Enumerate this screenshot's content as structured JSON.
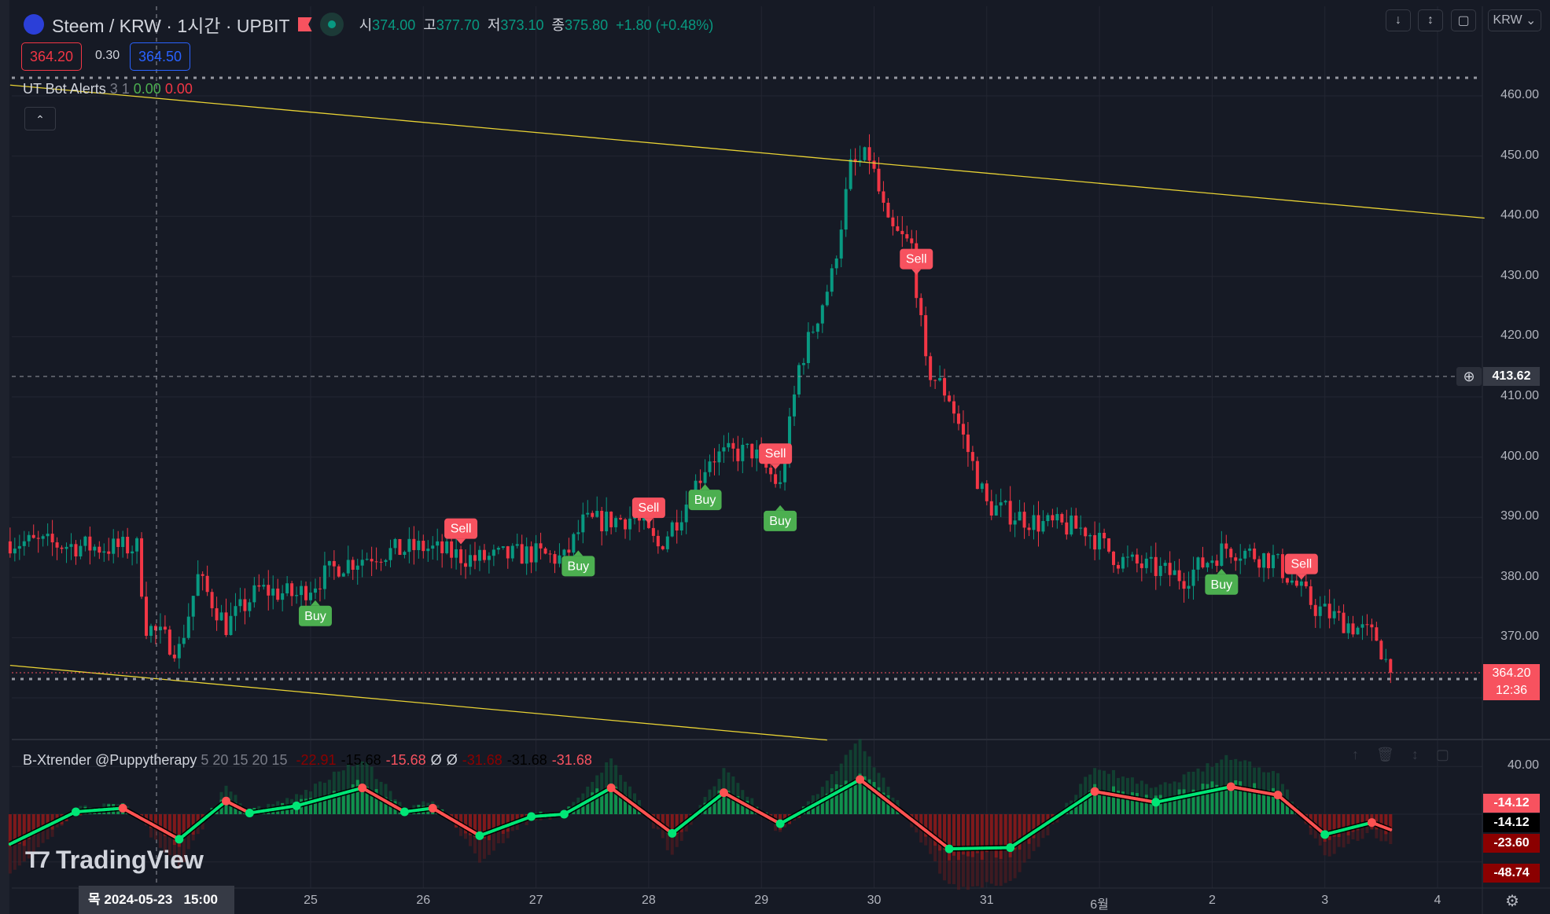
{
  "header": {
    "symbol": "Steem / KRW · 1시간 · UPBIT",
    "ohlc": [
      {
        "k": "시",
        "v": "374.00"
      },
      {
        "k": "고",
        "v": "377.70"
      },
      {
        "k": "저",
        "v": "373.10"
      },
      {
        "k": "종",
        "v": "375.80"
      }
    ],
    "change": "+1.80 (+0.48%)",
    "bid": "364.20",
    "spread": "0.30",
    "ask": "364.50",
    "currency": "KRW"
  },
  "indicators": {
    "ut": {
      "name": "UT Bot Alerts",
      "params": "3 1",
      "v1": "0.00",
      "v2": "0.00"
    },
    "bx": {
      "name": "B-Xtrender @Puppytherapy",
      "params": "5 20 15 20 15",
      "values": [
        {
          "t": "-22.91",
          "c": "#8b0000"
        },
        {
          "t": "-15.68",
          "c": "#000000"
        },
        {
          "t": "-15.68",
          "c": "#f7525f"
        },
        {
          "t": "Ø",
          "c": "#d1d4dc"
        },
        {
          "t": "Ø",
          "c": "#d1d4dc"
        },
        {
          "t": "-31.68",
          "c": "#8b0000"
        },
        {
          "t": "-31.68",
          "c": "#000000"
        },
        {
          "t": "-31.68",
          "c": "#f7525f"
        }
      ]
    }
  },
  "price_axis": [
    "460.00",
    "450.00",
    "440.00",
    "430.00",
    "420.00",
    "410.00",
    "400.00",
    "390.00",
    "380.00",
    "370.00"
  ],
  "crosshair": {
    "price": "413.62",
    "time_label": "목 2024-05-23",
    "time_hour": "15:00"
  },
  "last_price": {
    "price": "364.20",
    "countdown": "12:36"
  },
  "ind_axis": {
    "top": "40.00",
    "labels": [
      {
        "t": "-14.12",
        "bg": "#f7525f",
        "fg": "#ffffff"
      },
      {
        "t": "-14.12",
        "bg": "#000000",
        "fg": "#ffffff"
      },
      {
        "t": "-23.60",
        "bg": "#8b0000",
        "fg": "#ffffff"
      },
      {
        "t": "-48.74",
        "bg": "#8b0000",
        "fg": "#ffffff"
      }
    ]
  },
  "time_axis": [
    "25",
    "26",
    "27",
    "28",
    "29",
    "30",
    "31",
    "6월",
    "2",
    "3",
    "4"
  ],
  "watermark": "TradingView",
  "colors": {
    "up": "#089981",
    "down": "#f23645",
    "trend": "#e8d234",
    "buy": "#4caf50",
    "sell": "#f7525f",
    "line_up": "#00e676",
    "line_down": "#ff5252"
  },
  "chart_data": {
    "type": "candlestick",
    "price_path": [
      [
        "2024-05-22T08",
        386
      ],
      [
        "2024-05-23T03",
        385
      ],
      [
        "2024-05-23T11",
        385
      ],
      [
        "2024-05-23T13",
        372
      ],
      [
        "2024-05-23T20",
        368
      ],
      [
        "2024-05-24T00",
        380
      ],
      [
        "2024-05-24T06",
        372
      ],
      [
        "2024-05-24T13",
        378
      ],
      [
        "2024-05-24T21",
        377
      ],
      [
        "2024-05-25T06",
        382
      ],
      [
        "2024-05-25T14",
        384
      ],
      [
        "2024-05-26T00",
        385
      ],
      [
        "2024-05-26T11",
        383
      ],
      [
        "2024-05-26T23",
        384
      ],
      [
        "2024-05-27T06",
        383
      ],
      [
        "2024-05-27T10",
        389
      ],
      [
        "2024-05-27T21",
        390
      ],
      [
        "2024-05-28T02",
        385
      ],
      [
        "2024-05-28T07",
        391
      ],
      [
        "2024-05-28T13",
        400
      ],
      [
        "2024-05-28T22",
        401
      ],
      [
        "2024-05-29T04",
        395
      ],
      [
        "2024-05-29T08",
        415
      ],
      [
        "2024-05-29T15",
        430
      ],
      [
        "2024-05-29T19",
        448
      ],
      [
        "2024-05-29T23",
        450
      ],
      [
        "2024-05-30T03",
        438
      ],
      [
        "2024-05-30T08",
        435
      ],
      [
        "2024-05-30T11",
        415
      ],
      [
        "2024-05-30T16",
        410
      ],
      [
        "2024-05-31T00",
        392
      ],
      [
        "2024-05-31T11",
        389
      ],
      [
        "2024-05-31T21",
        388
      ],
      [
        "2024-06-01T04",
        383
      ],
      [
        "2024-06-01T18",
        380
      ],
      [
        "2024-06-02T03",
        385
      ],
      [
        "2024-06-02T13",
        383
      ],
      [
        "2024-06-02T22",
        375
      ],
      [
        "2024-06-03T11",
        370
      ],
      [
        "2024-06-03T14",
        364.2
      ]
    ],
    "signals": [
      {
        "type": "Buy",
        "time": "2024-05-25T01"
      },
      {
        "type": "Buy",
        "time": "2024-05-27T09"
      },
      {
        "type": "Buy",
        "time": "2024-05-28T12"
      },
      {
        "type": "Buy",
        "time": "2024-05-29T04"
      },
      {
        "type": "Buy",
        "time": "2024-06-02T02"
      },
      {
        "type": "Sell",
        "time": "2024-05-26T08"
      },
      {
        "type": "Sell",
        "time": "2024-05-28T00"
      },
      {
        "type": "Sell",
        "time": "2024-05-29T03"
      },
      {
        "type": "Sell",
        "time": "2024-05-30T09"
      },
      {
        "type": "Sell",
        "time": "2024-06-02T19"
      }
    ],
    "trendlines": [
      [
        [
          "2024-05-22T08",
          461.8
        ],
        [
          "2024-06-04T10",
          439.7
        ]
      ],
      [
        [
          "2024-05-22T08",
          365.4
        ],
        [
          "2024-05-29T14",
          353
        ]
      ]
    ],
    "ylim": [
      355,
      465
    ],
    "indicator_line": [
      [
        "2024-05-22T08",
        -25
      ],
      [
        "2024-05-22T22",
        2
      ],
      [
        "2024-05-23T08",
        5
      ],
      [
        "2024-05-23T20",
        -21
      ],
      [
        "2024-05-24T06",
        11
      ],
      [
        "2024-05-24T11",
        1
      ],
      [
        "2024-05-24T21",
        7
      ],
      [
        "2024-05-25T11",
        22
      ],
      [
        "2024-05-25T20",
        2
      ],
      [
        "2024-05-26T02",
        5
      ],
      [
        "2024-05-26T12",
        -18
      ],
      [
        "2024-05-26T23",
        -2
      ],
      [
        "2024-05-27T06",
        0
      ],
      [
        "2024-05-27T16",
        22
      ],
      [
        "2024-05-28T05",
        -16
      ],
      [
        "2024-05-28T16",
        18
      ],
      [
        "2024-05-29T04",
        -8
      ],
      [
        "2024-05-29T21",
        29
      ],
      [
        "2024-05-30T16",
        -29
      ],
      [
        "2024-05-31T05",
        -28
      ],
      [
        "2024-05-31T23",
        19
      ],
      [
        "2024-06-01T12",
        10
      ],
      [
        "2024-06-02T04",
        23
      ],
      [
        "2024-06-02T14",
        16
      ],
      [
        "2024-06-03T00",
        -17
      ],
      [
        "2024-06-03T10",
        -7
      ],
      [
        "2024-06-03T14",
        -13
      ]
    ],
    "indicator_ylim": [
      -60,
      60
    ]
  }
}
